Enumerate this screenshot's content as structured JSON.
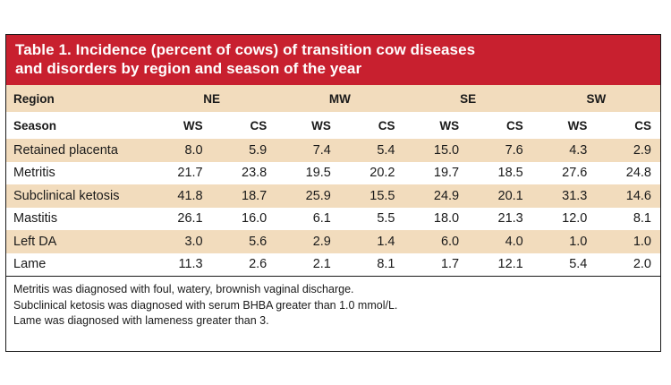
{
  "title_line1": "Table 1. Incidence (percent of cows) of transition cow diseases",
  "title_line2": "and disorders by region and season of the year",
  "region_header": "Region",
  "season_header": "Season",
  "regions": [
    "NE",
    "MW",
    "SE",
    "SW"
  ],
  "seasons": [
    "WS",
    "CS",
    "WS",
    "CS",
    "WS",
    "CS",
    "WS",
    "CS"
  ],
  "rows": [
    {
      "label": "Retained placenta",
      "values": [
        "8.0",
        "5.9",
        "7.4",
        "5.4",
        "15.0",
        "7.6",
        "4.3",
        "2.9"
      ]
    },
    {
      "label": "Metritis",
      "values": [
        "21.7",
        "23.8",
        "19.5",
        "20.2",
        "19.7",
        "18.5",
        "27.6",
        "24.8"
      ]
    },
    {
      "label": "Subclinical ketosis",
      "values": [
        "41.8",
        "18.7",
        "25.9",
        "15.5",
        "24.9",
        "20.1",
        "31.3",
        "14.6"
      ]
    },
    {
      "label": "Mastitis",
      "values": [
        "26.1",
        "16.0",
        "6.1",
        "5.5",
        "18.0",
        "21.3",
        "12.0",
        "8.1"
      ]
    },
    {
      "label": "Left DA",
      "values": [
        "3.0",
        "5.6",
        "2.9",
        "1.4",
        "6.0",
        "4.0",
        "1.0",
        "1.0"
      ]
    },
    {
      "label": "Lame",
      "values": [
        "11.3",
        "2.6",
        "2.1",
        "8.1",
        "1.7",
        "12.1",
        "5.4",
        "2.0"
      ]
    }
  ],
  "notes": [
    "Metritis was diagnosed with foul, watery, brownish vaginal discharge.",
    "Subclinical ketosis was diagnosed with serum BHBA greater than 1.0 mmol/L.",
    "Lame was diagnosed with lameness greater than 3."
  ],
  "colors": {
    "title_background": "#c8202f",
    "title_text": "#ffffff",
    "band_row": "#f2dcbd"
  }
}
